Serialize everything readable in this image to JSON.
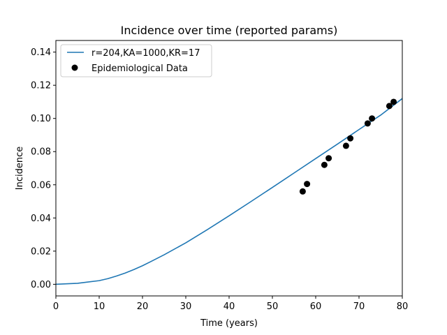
{
  "chart_data": {
    "type": "line",
    "title": "Incidence over time (reported params)",
    "xlabel": "Time (years)",
    "ylabel": "Incidence",
    "xlim": [
      0,
      80
    ],
    "ylim": [
      -0.007,
      0.147
    ],
    "xticks": [
      0,
      10,
      20,
      30,
      40,
      50,
      60,
      70,
      80
    ],
    "xtick_labels": [
      "0",
      "10",
      "20",
      "30",
      "40",
      "50",
      "60",
      "70",
      "80"
    ],
    "yticks": [
      0.0,
      0.02,
      0.04,
      0.06,
      0.08,
      0.1,
      0.12,
      0.14
    ],
    "ytick_labels": [
      "0.00",
      "0.02",
      "0.04",
      "0.06",
      "0.08",
      "0.10",
      "0.12",
      "0.14"
    ],
    "grid": false,
    "legend_position": "top-left",
    "series": [
      {
        "name": "r=204,KA=1000,KR=17",
        "type": "line",
        "color": "#1f77b4",
        "x": [
          0,
          5,
          10,
          12,
          14,
          16,
          18,
          20,
          22,
          25,
          30,
          35,
          40,
          45,
          50,
          55,
          60,
          65,
          70,
          75,
          80
        ],
        "y": [
          0.0,
          0.0006,
          0.0022,
          0.0034,
          0.005,
          0.0068,
          0.0089,
          0.0112,
          0.0138,
          0.0178,
          0.025,
          0.033,
          0.0413,
          0.0498,
          0.0584,
          0.0671,
          0.0758,
          0.0845,
          0.0933,
          0.102,
          0.112
        ]
      },
      {
        "name": "Epidemiological Data",
        "type": "scatter",
        "color": "#000000",
        "x": [
          57,
          58,
          62,
          63,
          67,
          68,
          72,
          73,
          77,
          78
        ],
        "y": [
          0.056,
          0.0605,
          0.072,
          0.076,
          0.0835,
          0.088,
          0.097,
          0.1,
          0.1075,
          0.11
        ]
      }
    ]
  }
}
